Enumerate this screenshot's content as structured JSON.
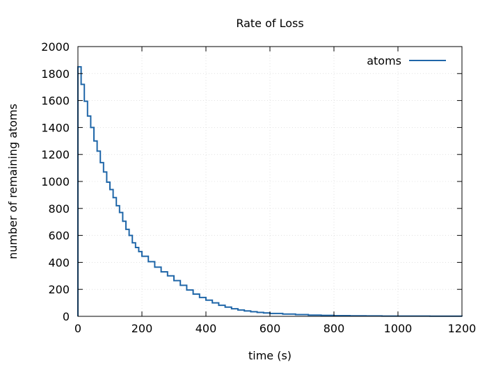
{
  "chart_data": {
    "type": "line",
    "title": "Rate of Loss",
    "xlabel": "time (s)",
    "ylabel": "number of remaining atoms",
    "xlim": [
      0,
      1200
    ],
    "ylim": [
      0,
      2000
    ],
    "xticks": [
      0,
      200,
      400,
      600,
      800,
      1000,
      1200
    ],
    "yticks": [
      0,
      200,
      400,
      600,
      800,
      1000,
      1200,
      1400,
      1600,
      1800,
      2000
    ],
    "grid": true,
    "legend": "top-right",
    "step": true,
    "series": [
      {
        "name": "atoms",
        "color": "#1f66a8",
        "x": [
          0,
          10,
          20,
          30,
          40,
          50,
          60,
          70,
          80,
          90,
          100,
          110,
          120,
          130,
          140,
          150,
          160,
          170,
          180,
          190,
          200,
          220,
          240,
          260,
          280,
          300,
          320,
          340,
          360,
          380,
          400,
          420,
          440,
          460,
          480,
          500,
          520,
          540,
          560,
          580,
          600,
          640,
          680,
          720,
          760,
          800,
          850,
          900,
          950,
          1000,
          1100,
          1200
        ],
        "values": [
          1850,
          1720,
          1595,
          1485,
          1400,
          1300,
          1225,
          1140,
          1070,
          995,
          940,
          880,
          820,
          770,
          705,
          645,
          600,
          545,
          510,
          480,
          445,
          405,
          365,
          330,
          300,
          265,
          230,
          195,
          165,
          140,
          120,
          100,
          82,
          68,
          56,
          47,
          40,
          34,
          29,
          25,
          21,
          17,
          13,
          9,
          7,
          5,
          4,
          3,
          2,
          2,
          1,
          0
        ]
      }
    ]
  }
}
